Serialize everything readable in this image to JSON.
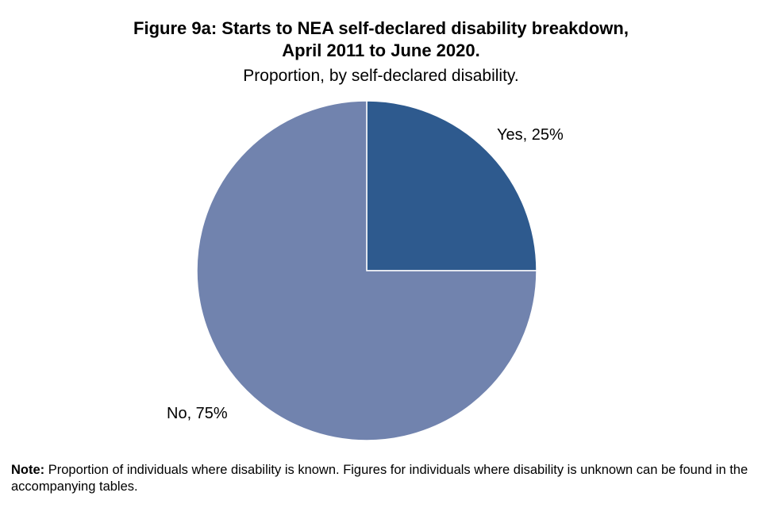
{
  "chart_data": {
    "type": "pie",
    "title_line1": "Figure 9a: Starts to NEA self-declared disability breakdown,",
    "title_line2": "April 2011 to June 2020.",
    "subtitle": "Proportion, by self-declared disability.",
    "categories": [
      "Yes",
      "No"
    ],
    "values": [
      25,
      75
    ],
    "labels": [
      "Yes, 25%",
      "No, 75%"
    ],
    "colors": [
      "#2E5A8E",
      "#7183AE"
    ]
  },
  "note": {
    "label": "Note:",
    "text": " Proportion of individuals  where disability is known. Figures for individuals  where disability is unknown can be found in the accompanying tables."
  }
}
